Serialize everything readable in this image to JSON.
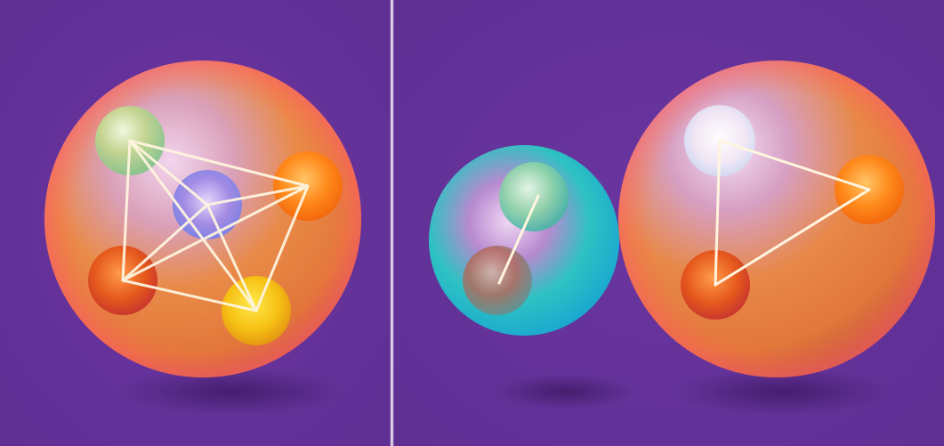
{
  "image": {
    "background_color": "#633197",
    "divider_color": "#f4eefc",
    "panels": [
      {
        "name": "left-panel",
        "shell_color": "#e8782f",
        "inner_spheres": [
          "green",
          "lavender",
          "orange",
          "red",
          "yellow"
        ],
        "connections": "all-pairs"
      },
      {
        "name": "right-panel",
        "shells": [
          {
            "name": "teal-shell",
            "color": "#1fb7c8",
            "inner_spheres": [
              "green",
              "red"
            ]
          },
          {
            "name": "orange-shell",
            "color": "#e8782f",
            "inner_spheres": [
              "white",
              "orange",
              "red"
            ]
          }
        ]
      }
    ]
  }
}
